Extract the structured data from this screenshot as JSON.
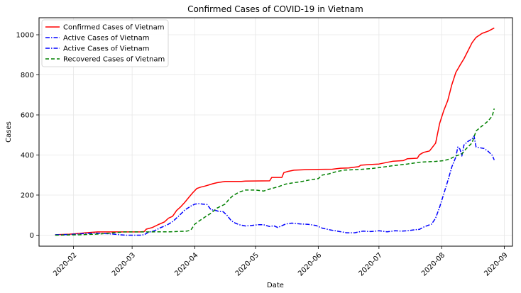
{
  "chart_data": {
    "type": "line",
    "title": "Confirmed Cases of COVID-19 in Vietnam",
    "xlabel": "Date",
    "ylabel": "Cases",
    "grid": true,
    "legend_position": "top-left",
    "x_range": [
      "2020-01-15",
      "2020-09-05"
    ],
    "ylim": [
      -55,
      1085
    ],
    "x_ticks": [
      "2020-02",
      "2020-03",
      "2020-04",
      "2020-05",
      "2020-06",
      "2020-07",
      "2020-08",
      "2020-09"
    ],
    "x_tick_dates": [
      "2020-02-01",
      "2020-03-01",
      "2020-04-01",
      "2020-05-01",
      "2020-06-01",
      "2020-07-01",
      "2020-08-01",
      "2020-09-01"
    ],
    "y_ticks": [
      0,
      200,
      400,
      600,
      800,
      1000
    ],
    "series": [
      {
        "name": "Confirmed Cases of Vietnam",
        "color": "#ff0000",
        "style": "solid",
        "points": [
          [
            "2020-01-23",
            2
          ],
          [
            "2020-01-30",
            5
          ],
          [
            "2020-02-03",
            8
          ],
          [
            "2020-02-07",
            12
          ],
          [
            "2020-02-10",
            14
          ],
          [
            "2020-02-13",
            16
          ],
          [
            "2020-02-20",
            16
          ],
          [
            "2020-03-05",
            16
          ],
          [
            "2020-03-07",
            18
          ],
          [
            "2020-03-08",
            30
          ],
          [
            "2020-03-11",
            38
          ],
          [
            "2020-03-14",
            53
          ],
          [
            "2020-03-17",
            66
          ],
          [
            "2020-03-19",
            85
          ],
          [
            "2020-03-21",
            94
          ],
          [
            "2020-03-23",
            123
          ],
          [
            "2020-03-25",
            141
          ],
          [
            "2020-03-27",
            163
          ],
          [
            "2020-03-29",
            188
          ],
          [
            "2020-03-31",
            212
          ],
          [
            "2020-04-02",
            233
          ],
          [
            "2020-04-04",
            240
          ],
          [
            "2020-04-06",
            245
          ],
          [
            "2020-04-08",
            251
          ],
          [
            "2020-04-10",
            257
          ],
          [
            "2020-04-12",
            262
          ],
          [
            "2020-04-14",
            265
          ],
          [
            "2020-04-16",
            268
          ],
          [
            "2020-04-24",
            268
          ],
          [
            "2020-04-26",
            270
          ],
          [
            "2020-05-08",
            271
          ],
          [
            "2020-05-09",
            288
          ],
          [
            "2020-05-14",
            288
          ],
          [
            "2020-05-15",
            312
          ],
          [
            "2020-05-17",
            318
          ],
          [
            "2020-05-20",
            324
          ],
          [
            "2020-05-26",
            327
          ],
          [
            "2020-06-01",
            328
          ],
          [
            "2020-06-08",
            329
          ],
          [
            "2020-06-12",
            334
          ],
          [
            "2020-06-16",
            335
          ],
          [
            "2020-06-21",
            342
          ],
          [
            "2020-06-22",
            349
          ],
          [
            "2020-06-26",
            352
          ],
          [
            "2020-07-01",
            355
          ],
          [
            "2020-07-08",
            369
          ],
          [
            "2020-07-13",
            372
          ],
          [
            "2020-07-15",
            381
          ],
          [
            "2020-07-20",
            384
          ],
          [
            "2020-07-21",
            401
          ],
          [
            "2020-07-23",
            413
          ],
          [
            "2020-07-26",
            420
          ],
          [
            "2020-07-29",
            459
          ],
          [
            "2020-07-31",
            558
          ],
          [
            "2020-08-02",
            621
          ],
          [
            "2020-08-04",
            672
          ],
          [
            "2020-08-06",
            750
          ],
          [
            "2020-08-08",
            812
          ],
          [
            "2020-08-10",
            847
          ],
          [
            "2020-08-12",
            880
          ],
          [
            "2020-08-14",
            920
          ],
          [
            "2020-08-16",
            960
          ],
          [
            "2020-08-18",
            987
          ],
          [
            "2020-08-21",
            1007
          ],
          [
            "2020-08-24",
            1018
          ],
          [
            "2020-08-27",
            1034
          ]
        ]
      },
      {
        "name": "Active Cases of Vietnam",
        "color": "#0000ff",
        "style": "dashdot",
        "points": [
          [
            "2020-01-23",
            2
          ],
          [
            "2020-01-30",
            3
          ],
          [
            "2020-02-03",
            6
          ],
          [
            "2020-02-08",
            9
          ],
          [
            "2020-02-12",
            10
          ],
          [
            "2020-02-16",
            8
          ],
          [
            "2020-02-20",
            6
          ],
          [
            "2020-02-24",
            2
          ],
          [
            "2020-02-27",
            0
          ],
          [
            "2020-03-05",
            0
          ],
          [
            "2020-03-07",
            2
          ],
          [
            "2020-03-09",
            14
          ],
          [
            "2020-03-12",
            22
          ],
          [
            "2020-03-15",
            37
          ],
          [
            "2020-03-18",
            49
          ],
          [
            "2020-03-21",
            67
          ],
          [
            "2020-03-24",
            95
          ],
          [
            "2020-03-27",
            125
          ],
          [
            "2020-03-30",
            145
          ],
          [
            "2020-04-01",
            155
          ],
          [
            "2020-04-03",
            157
          ],
          [
            "2020-04-05",
            155
          ],
          [
            "2020-04-07",
            153
          ],
          [
            "2020-04-09",
            127
          ],
          [
            "2020-04-11",
            124
          ],
          [
            "2020-04-13",
            118
          ],
          [
            "2020-04-15",
            117
          ],
          [
            "2020-04-17",
            98
          ],
          [
            "2020-04-19",
            72
          ],
          [
            "2020-04-21",
            60
          ],
          [
            "2020-04-23",
            52
          ],
          [
            "2020-04-26",
            46
          ],
          [
            "2020-04-29",
            48
          ],
          [
            "2020-05-02",
            52
          ],
          [
            "2020-05-05",
            52
          ],
          [
            "2020-05-08",
            43
          ],
          [
            "2020-05-10",
            47
          ],
          [
            "2020-05-12",
            38
          ],
          [
            "2020-05-14",
            47
          ],
          [
            "2020-05-16",
            56
          ],
          [
            "2020-05-19",
            60
          ],
          [
            "2020-05-23",
            56
          ],
          [
            "2020-05-27",
            54
          ],
          [
            "2020-05-31",
            48
          ],
          [
            "2020-06-03",
            35
          ],
          [
            "2020-06-07",
            26
          ],
          [
            "2020-06-11",
            19
          ],
          [
            "2020-06-15",
            12
          ],
          [
            "2020-06-19",
            12
          ],
          [
            "2020-06-23",
            20
          ],
          [
            "2020-06-27",
            18
          ],
          [
            "2020-07-01",
            22
          ],
          [
            "2020-07-05",
            17
          ],
          [
            "2020-07-09",
            22
          ],
          [
            "2020-07-12",
            20
          ],
          [
            "2020-07-15",
            22
          ],
          [
            "2020-07-18",
            26
          ],
          [
            "2020-07-21",
            29
          ],
          [
            "2020-07-23",
            40
          ],
          [
            "2020-07-25",
            48
          ],
          [
            "2020-07-27",
            55
          ],
          [
            "2020-07-29",
            85
          ],
          [
            "2020-07-31",
            140
          ],
          [
            "2020-08-02",
            205
          ],
          [
            "2020-08-04",
            270
          ],
          [
            "2020-08-06",
            340
          ],
          [
            "2020-08-08",
            390
          ],
          [
            "2020-08-09",
            440
          ],
          [
            "2020-08-10",
            430
          ],
          [
            "2020-08-11",
            395
          ],
          [
            "2020-08-12",
            450
          ],
          [
            "2020-08-14",
            468
          ],
          [
            "2020-08-16",
            480
          ],
          [
            "2020-08-17",
            495
          ],
          [
            "2020-08-18",
            440
          ],
          [
            "2020-08-20",
            436
          ],
          [
            "2020-08-22",
            432
          ],
          [
            "2020-08-24",
            418
          ],
          [
            "2020-08-26",
            398
          ],
          [
            "2020-08-27",
            375
          ]
        ]
      },
      {
        "name": "Active Cases of Vietnam",
        "color": "#0000ff",
        "style": "dashdot",
        "points": []
      },
      {
        "name": "Recovered Cases of Vietnam",
        "color": "#008000",
        "style": "dashed",
        "points": [
          [
            "2020-01-23",
            0
          ],
          [
            "2020-02-05",
            2
          ],
          [
            "2020-02-14",
            6
          ],
          [
            "2020-02-26",
            16
          ],
          [
            "2020-03-05",
            16
          ],
          [
            "2020-03-20",
            17
          ],
          [
            "2020-03-28",
            20
          ],
          [
            "2020-03-30",
            25
          ],
          [
            "2020-04-01",
            55
          ],
          [
            "2020-04-03",
            70
          ],
          [
            "2020-04-06",
            90
          ],
          [
            "2020-04-09",
            110
          ],
          [
            "2020-04-12",
            135
          ],
          [
            "2020-04-14",
            145
          ],
          [
            "2020-04-16",
            155
          ],
          [
            "2020-04-18",
            180
          ],
          [
            "2020-04-20",
            198
          ],
          [
            "2020-04-23",
            215
          ],
          [
            "2020-04-26",
            225
          ],
          [
            "2020-05-01",
            225
          ],
          [
            "2020-05-05",
            220
          ],
          [
            "2020-05-08",
            230
          ],
          [
            "2020-05-12",
            241
          ],
          [
            "2020-05-16",
            255
          ],
          [
            "2020-05-20",
            262
          ],
          [
            "2020-05-24",
            268
          ],
          [
            "2020-05-28",
            276
          ],
          [
            "2020-06-01",
            282
          ],
          [
            "2020-06-03",
            300
          ],
          [
            "2020-06-06",
            305
          ],
          [
            "2020-06-10",
            317
          ],
          [
            "2020-06-14",
            325
          ],
          [
            "2020-06-20",
            327
          ],
          [
            "2020-06-27",
            332
          ],
          [
            "2020-07-01",
            337
          ],
          [
            "2020-07-08",
            347
          ],
          [
            "2020-07-15",
            355
          ],
          [
            "2020-07-22",
            365
          ],
          [
            "2020-07-29",
            368
          ],
          [
            "2020-08-02",
            372
          ],
          [
            "2020-08-05",
            380
          ],
          [
            "2020-08-08",
            395
          ],
          [
            "2020-08-11",
            405
          ],
          [
            "2020-08-13",
            430
          ],
          [
            "2020-08-16",
            460
          ],
          [
            "2020-08-18",
            520
          ],
          [
            "2020-08-21",
            545
          ],
          [
            "2020-08-24",
            570
          ],
          [
            "2020-08-26",
            595
          ],
          [
            "2020-08-27",
            632
          ]
        ]
      }
    ]
  }
}
